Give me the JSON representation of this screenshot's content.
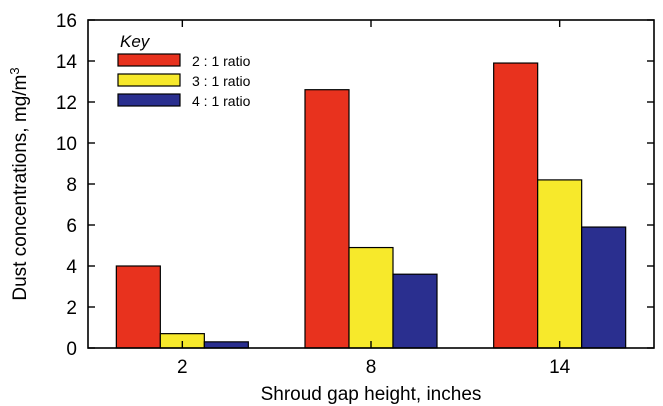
{
  "chart_data": {
    "type": "bar",
    "categories": [
      "2",
      "8",
      "14"
    ],
    "series": [
      {
        "name": "2 : 1 ratio",
        "values": [
          4.0,
          12.6,
          13.9
        ],
        "color": "#e8321e"
      },
      {
        "name": "3 : 1 ratio",
        "values": [
          0.7,
          4.9,
          8.2
        ],
        "color": "#f7e92b"
      },
      {
        "name": "4 : 1 ratio",
        "values": [
          0.3,
          3.6,
          5.9
        ],
        "color": "#2a2f8f"
      }
    ],
    "legend_title": "Key",
    "legend_position": "top-left",
    "xlabel": "Shroud gap height, inches",
    "ylabel": "Dust concentrations, mg/m",
    "ylabel_superscript": "3",
    "ylim": [
      0,
      16
    ],
    "yticks": [
      "0",
      "2",
      "4",
      "6",
      "8",
      "10",
      "12",
      "14",
      "16"
    ],
    "grid": false
  }
}
